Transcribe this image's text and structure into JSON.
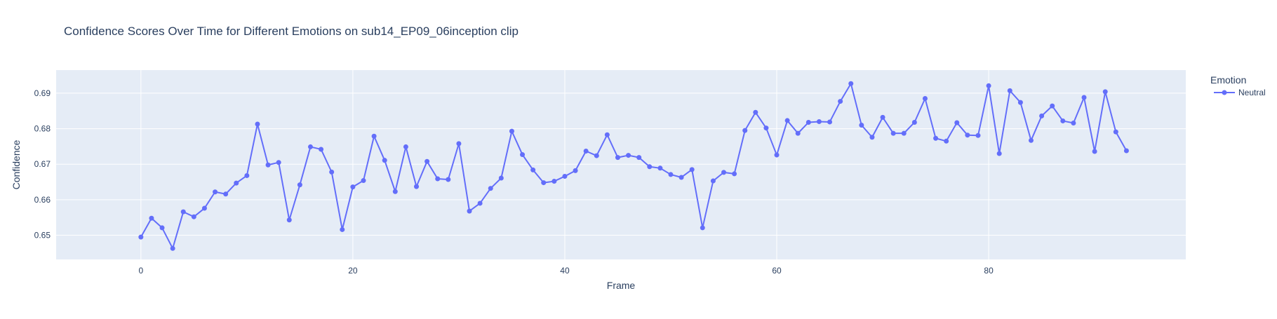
{
  "chart_data": {
    "type": "line",
    "title": "Confidence Scores Over Time for Different Emotions on sub14_EP09_06inception clip",
    "xlabel": "Frame",
    "ylabel": "Confidence",
    "xlim": [
      -8,
      98.6
    ],
    "ylim": [
      0.6432,
      0.6965
    ],
    "x_ticks": [
      0,
      20,
      40,
      60,
      80
    ],
    "y_ticks": [
      0.65,
      0.66,
      0.67,
      0.68,
      0.69
    ],
    "grid": true,
    "legend": {
      "title": "Emotion",
      "position": "top-right"
    },
    "series": [
      {
        "name": "Neutral",
        "color": "#636efa",
        "x": [
          0,
          1,
          2,
          3,
          4,
          5,
          6,
          7,
          8,
          9,
          10,
          11,
          12,
          13,
          14,
          15,
          16,
          17,
          18,
          19,
          20,
          21,
          22,
          23,
          24,
          25,
          26,
          27,
          28,
          29,
          30,
          31,
          32,
          33,
          34,
          35,
          36,
          37,
          38,
          39,
          40,
          41,
          42,
          43,
          44,
          45,
          46,
          47,
          48,
          49,
          50,
          51,
          52,
          53,
          54,
          55,
          56,
          57,
          58,
          59,
          60,
          61,
          62,
          63,
          64,
          65,
          66,
          67,
          68,
          69,
          70,
          71,
          72,
          73,
          74,
          75,
          76,
          77,
          78,
          79,
          80,
          81,
          82,
          83,
          84,
          85,
          86,
          87,
          88,
          89,
          90,
          91,
          92,
          93
        ],
        "y": [
          0.6495,
          0.6548,
          0.6521,
          0.6463,
          0.6566,
          0.6552,
          0.6576,
          0.6622,
          0.6616,
          0.6647,
          0.6668,
          0.6813,
          0.6698,
          0.6705,
          0.6543,
          0.6642,
          0.6749,
          0.6742,
          0.6678,
          0.6516,
          0.6636,
          0.6654,
          0.6779,
          0.6711,
          0.6623,
          0.6749,
          0.6637,
          0.6708,
          0.6659,
          0.6657,
          0.6758,
          0.6568,
          0.659,
          0.6632,
          0.6661,
          0.6793,
          0.6727,
          0.6684,
          0.6648,
          0.6652,
          0.6666,
          0.6682,
          0.6737,
          0.6724,
          0.6783,
          0.6719,
          0.6725,
          0.6719,
          0.6693,
          0.6689,
          0.6671,
          0.6663,
          0.6685,
          0.6521,
          0.6653,
          0.6677,
          0.6673,
          0.6795,
          0.6846,
          0.6802,
          0.6726,
          0.6823,
          0.6787,
          0.6818,
          0.682,
          0.6819,
          0.6877,
          0.6927,
          0.681,
          0.6776,
          0.6832,
          0.6787,
          0.6787,
          0.6818,
          0.6885,
          0.6773,
          0.6765,
          0.6817,
          0.6782,
          0.6781,
          0.6921,
          0.673,
          0.6907,
          0.6874,
          0.6767,
          0.6836,
          0.6864,
          0.6822,
          0.6816,
          0.6888,
          0.6736,
          0.6904,
          0.6791,
          0.6738
        ]
      }
    ]
  }
}
